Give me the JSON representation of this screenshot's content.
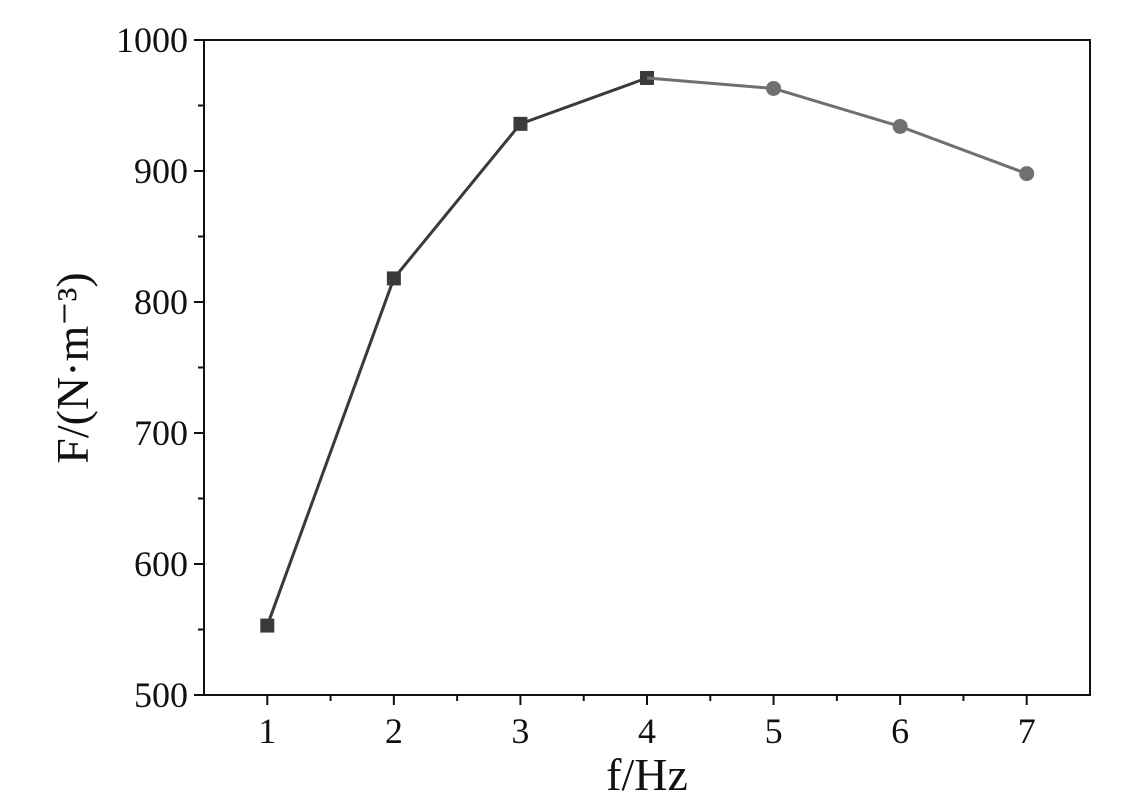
{
  "chart_data": {
    "type": "line",
    "x_label": "f/Hz",
    "y_label": "F/(N·m⁻³)",
    "series": [
      {
        "x": [
          1,
          2,
          3,
          4
        ],
        "values": [
          553,
          818,
          936,
          971
        ],
        "color": "#3a3a3a",
        "marker": "square"
      },
      {
        "x": [
          5,
          6,
          7
        ],
        "values": [
          963,
          934,
          898
        ],
        "color": "#707070",
        "marker": "circle"
      }
    ],
    "xlim": [
      0.5,
      7.5
    ],
    "xticks": [
      1,
      2,
      3,
      4,
      5,
      6,
      7
    ],
    "ylim": [
      500,
      1000
    ],
    "yticks": [
      500,
      600,
      700,
      800,
      900,
      1000
    ],
    "grid": false
  }
}
